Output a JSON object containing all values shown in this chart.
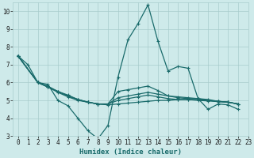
{
  "xlabel": "Humidex (Indice chaleur)",
  "xlim": [
    -0.5,
    23
  ],
  "ylim": [
    3,
    10.5
  ],
  "bg_color": "#ceeaea",
  "grid_color": "#a8cccc",
  "line_color": "#1a6b6b",
  "lines": [
    {
      "x": [
        0,
        1,
        2,
        3,
        4,
        5,
        6,
        7,
        8,
        9,
        10,
        11,
        12,
        13,
        14,
        15,
        16,
        17,
        18,
        19,
        20,
        21,
        22
      ],
      "y": [
        7.5,
        7.0,
        6.0,
        5.9,
        5.0,
        4.7,
        4.0,
        3.3,
        2.85,
        3.6,
        6.3,
        8.4,
        9.3,
        10.35,
        8.3,
        6.65,
        6.9,
        6.8,
        5.1,
        4.5,
        4.8,
        4.75,
        4.5
      ]
    },
    {
      "x": [
        0,
        2,
        3,
        4,
        5,
        6,
        7,
        8,
        9,
        10,
        11,
        12,
        13,
        14,
        15,
        16,
        17,
        18,
        19,
        20,
        21,
        22
      ],
      "y": [
        7.5,
        6.0,
        5.8,
        5.5,
        5.3,
        5.05,
        4.9,
        4.8,
        4.75,
        4.8,
        4.85,
        4.9,
        4.95,
        5.0,
        5.0,
        5.05,
        5.05,
        5.05,
        5.0,
        4.95,
        4.9,
        4.8
      ]
    },
    {
      "x": [
        0,
        2,
        3,
        4,
        5,
        6,
        7,
        8,
        9,
        10,
        11,
        12,
        13,
        14,
        15,
        16,
        17,
        18,
        19,
        20,
        21,
        22
      ],
      "y": [
        7.5,
        6.0,
        5.75,
        5.5,
        5.25,
        5.05,
        4.9,
        4.8,
        4.8,
        5.15,
        5.25,
        5.35,
        5.45,
        5.35,
        5.25,
        5.2,
        5.15,
        5.1,
        5.05,
        4.95,
        4.9,
        4.8
      ]
    },
    {
      "x": [
        0,
        2,
        3,
        4,
        5,
        6,
        7,
        8,
        9,
        10,
        11,
        12,
        13,
        14,
        15,
        16,
        17,
        18,
        19,
        20,
        21,
        22
      ],
      "y": [
        7.5,
        6.0,
        5.75,
        5.5,
        5.25,
        5.05,
        4.9,
        4.8,
        4.8,
        5.5,
        5.6,
        5.7,
        5.8,
        5.55,
        5.25,
        5.15,
        5.1,
        5.1,
        5.0,
        4.95,
        4.9,
        4.8
      ]
    },
    {
      "x": [
        0,
        2,
        3,
        4,
        5,
        6,
        7,
        8,
        9,
        10,
        11,
        12,
        13,
        14,
        15,
        16,
        17,
        18,
        19,
        20,
        21,
        22
      ],
      "y": [
        7.5,
        6.0,
        5.75,
        5.45,
        5.2,
        5.0,
        4.9,
        4.8,
        4.8,
        5.0,
        5.1,
        5.2,
        5.3,
        5.2,
        5.1,
        5.05,
        5.05,
        5.0,
        4.97,
        4.93,
        4.9,
        4.8
      ]
    }
  ],
  "marker": "+",
  "markersize": 3,
  "linewidth": 0.9,
  "yticks": [
    3,
    4,
    5,
    6,
    7,
    8,
    9,
    10
  ],
  "xticks": [
    0,
    1,
    2,
    3,
    4,
    5,
    6,
    7,
    8,
    9,
    10,
    11,
    12,
    13,
    14,
    15,
    16,
    17,
    18,
    19,
    20,
    21,
    22,
    23
  ],
  "tick_fontsize": 5.5,
  "xlabel_fontsize": 6.5
}
